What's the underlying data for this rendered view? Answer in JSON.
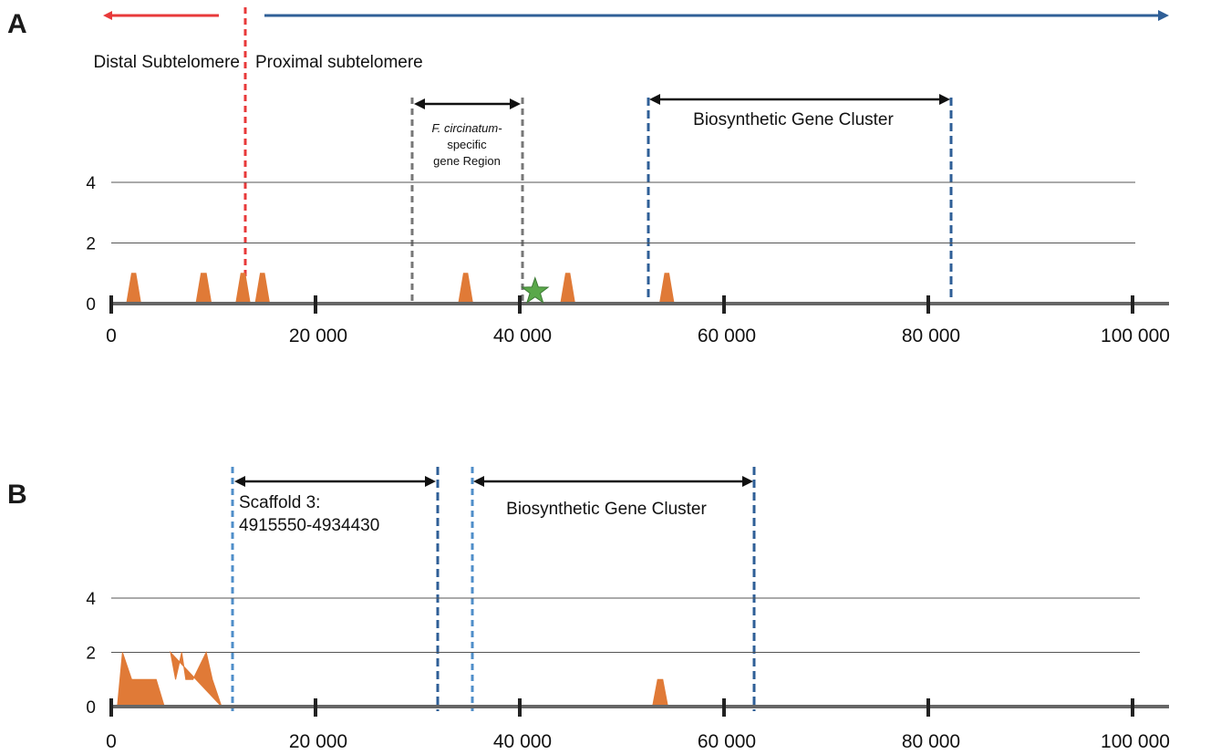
{
  "chart_data": [
    {
      "panel": "A",
      "type": "area",
      "xlim": [
        0,
        100000
      ],
      "ylim": [
        0,
        4
      ],
      "xticks": [
        0,
        20000,
        40000,
        60000,
        80000,
        100000
      ],
      "xtick_labels": [
        "0",
        "20 000",
        "40 000",
        "60 000",
        "80 000",
        "100 000"
      ],
      "yticks": [
        0,
        2,
        4
      ],
      "ytick_labels": [
        "0",
        "2",
        "4"
      ],
      "grid": "horizontal",
      "series": [
        {
          "color": "#e07a37",
          "x": [
            1500,
            2000,
            2400,
            2900,
            8300,
            8800,
            9300,
            9800,
            12200,
            12700,
            13100,
            13600,
            14100,
            14600,
            15000,
            15500,
            34000,
            34500,
            34900,
            35400,
            44000,
            44500,
            44900,
            45400,
            53700,
            54200,
            54600,
            55100
          ],
          "y": [
            0,
            1,
            1,
            0,
            0,
            1,
            1,
            0,
            0,
            1,
            1,
            0,
            0,
            1,
            1,
            0,
            0,
            1,
            1,
            0,
            0,
            1,
            1,
            0,
            0,
            1,
            1,
            0
          ]
        }
      ],
      "markers": [
        {
          "shape": "star",
          "x": 41500,
          "y": 0.4,
          "color": "#5aa84a"
        }
      ],
      "regions": [
        {
          "label": "Distal Subtelomere",
          "direction": "left",
          "color": "#e8393a"
        },
        {
          "label": "Proximal subtelomere",
          "direction": "right",
          "color": "#2f5f97"
        }
      ],
      "boundary": {
        "x": 13200,
        "color": "#e8393a"
      },
      "annotations": [
        {
          "label_italic": "F. circinatum-",
          "label_lines": [
            "specific",
            "gene Region"
          ],
          "x_start": 29500,
          "x_end": 40300,
          "color": "#777777"
        },
        {
          "label": "Biosynthetic Gene Cluster",
          "x_start": 52500,
          "x_end": 82200,
          "color": "#2f5f97"
        }
      ]
    },
    {
      "panel": "B",
      "type": "area",
      "xlim": [
        0,
        100000
      ],
      "ylim": [
        0,
        4
      ],
      "xticks": [
        0,
        20000,
        40000,
        60000,
        80000,
        100000
      ],
      "xtick_labels": [
        "0",
        "20 000",
        "40 000",
        "60 000",
        "80 000",
        "100 000"
      ],
      "yticks": [
        0,
        2,
        4
      ],
      "ytick_labels": [
        "0",
        "2",
        "4"
      ],
      "grid": "horizontal",
      "series": [
        {
          "color": "#e07a37",
          "x": [
            600,
            1100,
            2000,
            4400,
            5200,
            5800,
            6300,
            6900,
            7300,
            8000,
            9300,
            9900,
            10800,
            53000,
            53500,
            54000,
            54500
          ],
          "y": [
            0,
            2,
            1,
            1,
            0,
            2,
            1,
            2,
            1,
            1,
            2,
            1,
            0,
            0,
            1,
            1,
            0
          ]
        }
      ],
      "annotations": [
        {
          "label_lines": [
            "Scaffold 3:",
            "4915550-4934430"
          ],
          "x_start": 12000,
          "x_end": 31500,
          "color_left": "#4f8ec9",
          "color_right": "#2f5f97"
        },
        {
          "label": "Biosynthetic Gene Cluster",
          "x_start": 35500,
          "x_end": 63200,
          "color_left": "#4f8ec9",
          "color_right": "#2f5f97"
        }
      ]
    }
  ],
  "panel_labels": [
    "A",
    "B"
  ]
}
